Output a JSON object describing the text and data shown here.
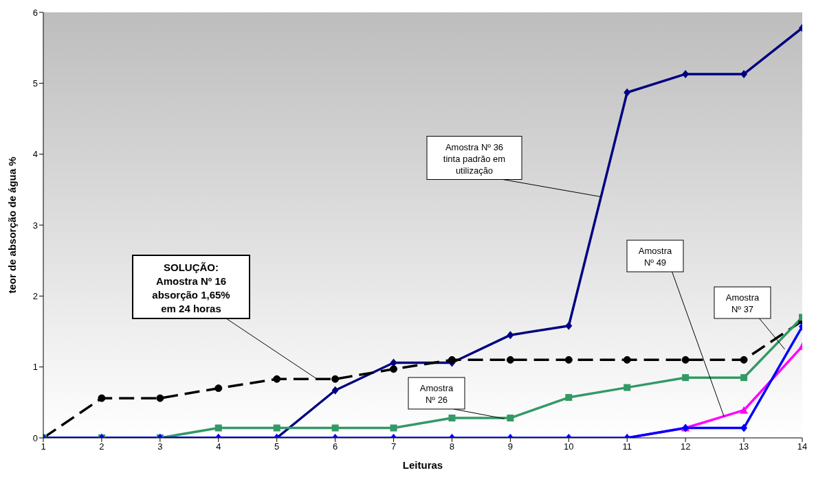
{
  "chart_data": {
    "type": "line",
    "xlabel": "Leituras",
    "ylabel": "teor de absorção de água %",
    "x": [
      1,
      2,
      3,
      4,
      5,
      6,
      7,
      8,
      9,
      10,
      11,
      12,
      13,
      14
    ],
    "xlim": [
      1,
      14
    ],
    "xticks": [
      1,
      2,
      3,
      4,
      5,
      6,
      7,
      8,
      9,
      10,
      11,
      12,
      13,
      14
    ],
    "ylim": [
      0,
      6
    ],
    "yticks": [
      0,
      1,
      2,
      3,
      4,
      5,
      6
    ],
    "grid": false,
    "legend": false,
    "series": [
      {
        "color": "#000080",
        "marker": "diamond",
        "line_style": "solid",
        "values": [
          0,
          0,
          0,
          0,
          0,
          0.67,
          1.06,
          1.06,
          1.45,
          1.58,
          4.87,
          5.13,
          5.13,
          5.78
        ]
      },
      {
        "color": "#000000",
        "marker": "circle",
        "line_style": "dashed",
        "values": [
          0,
          0.56,
          0.56,
          0.7,
          0.83,
          0.83,
          0.97,
          1.1,
          1.1,
          1.1,
          1.1,
          1.1,
          1.1,
          1.65
        ]
      },
      {
        "color": "#339966",
        "marker": "square",
        "line_style": "solid",
        "values": [
          0,
          0,
          0,
          0.14,
          0.14,
          0.14,
          0.14,
          0.28,
          0.28,
          0.57,
          0.71,
          0.85,
          0.85,
          1.7
        ]
      },
      {
        "color": "#ff00ff",
        "marker": "triangle",
        "line_style": "solid",
        "values": [
          null,
          null,
          null,
          null,
          null,
          null,
          null,
          null,
          null,
          null,
          0,
          0.14,
          0.39,
          1.29
        ]
      },
      {
        "color": "#0000ff",
        "marker": "diamond",
        "line_style": "solid",
        "values": [
          0,
          0,
          0,
          0,
          0,
          0,
          0,
          0,
          0,
          0,
          0,
          0.14,
          0.14,
          1.57
        ]
      }
    ],
    "annotations": [
      {
        "text": "Amostra Nº 36\ntinta padrão em\nutilização",
        "x": 10.55,
        "y": 3.4
      },
      {
        "text": "SOLUÇÃO:\nAmostra Nº 16\nabsorção 1,65%\nem 24 horas",
        "x": 5.67,
        "y": 0.84
      },
      {
        "text": "Amostra\nNº 26",
        "x": 8.9,
        "y": 0.27
      },
      {
        "text": "Amostra\nNº 49",
        "x": 12.66,
        "y": 0.3
      },
      {
        "text": "Amostra\nNº 37",
        "x": 13.7,
        "y": 1.25
      }
    ]
  }
}
